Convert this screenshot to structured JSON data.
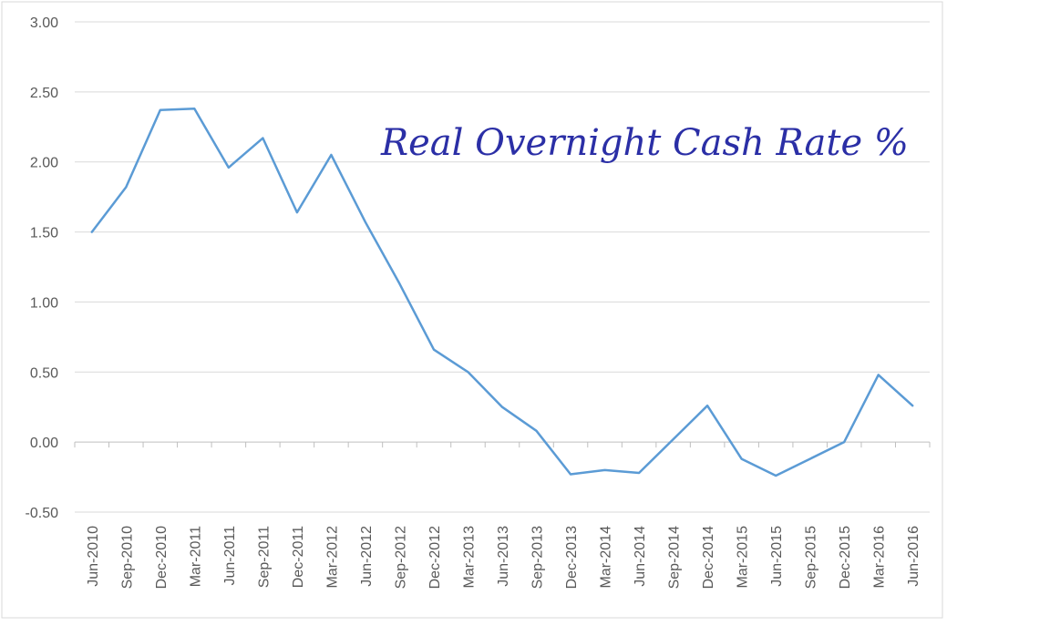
{
  "chart_data": {
    "type": "line",
    "title": "Real Overnight Cash Rate %",
    "xlabel": "",
    "ylabel": "",
    "ylim": [
      -0.5,
      3.0
    ],
    "yticks": [
      "-0.50",
      "0.00",
      "0.50",
      "1.00",
      "1.50",
      "2.00",
      "2.50",
      "3.00"
    ],
    "grid": true,
    "legend": "none",
    "categories": [
      "Jun-2010",
      "Sep-2010",
      "Dec-2010",
      "Mar-2011",
      "Jun-2011",
      "Sep-2011",
      "Dec-2011",
      "Mar-2012",
      "Jun-2012",
      "Sep-2012",
      "Dec-2012",
      "Mar-2013",
      "Jun-2013",
      "Sep-2013",
      "Dec-2013",
      "Mar-2014",
      "Jun-2014",
      "Sep-2014",
      "Dec-2014",
      "Mar-2015",
      "Jun-2015",
      "Sep-2015",
      "Dec-2015",
      "Mar-2016",
      "Jun-2016"
    ],
    "series": [
      {
        "values": [
          1.5,
          1.82,
          2.37,
          2.38,
          1.96,
          2.17,
          1.64,
          2.05,
          1.57,
          1.13,
          0.66,
          0.5,
          0.25,
          0.08,
          -0.23,
          -0.2,
          -0.22,
          0.02,
          0.26,
          -0.12,
          -0.24,
          -0.12,
          0.0,
          0.48,
          0.26
        ],
        "color": "#5b9bd5"
      }
    ]
  }
}
